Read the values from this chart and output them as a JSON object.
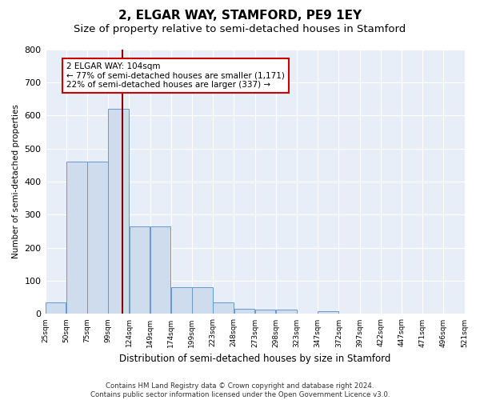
{
  "title_main": "2, ELGAR WAY, STAMFORD, PE9 1EY",
  "title_sub": "Size of property relative to semi-detached houses in Stamford",
  "xlabel": "Distribution of semi-detached houses by size in Stamford",
  "ylabel": "Number of semi-detached properties",
  "bar_color": "#cfdcee",
  "bar_edge_color": "#6699cc",
  "background_color": "#e8eef8",
  "grid_color": "white",
  "property_size": 104,
  "vline_color": "#8b0000",
  "annotation_text": "2 ELGAR WAY: 104sqm\n← 77% of semi-detached houses are smaller (1,171)\n22% of semi-detached houses are larger (337) →",
  "annotation_box_color": "white",
  "annotation_box_edge": "#cc0000",
  "bin_starts": [
    0,
    1,
    2,
    3,
    4,
    5,
    6,
    7,
    8,
    9,
    10,
    11,
    12,
    13,
    14,
    15,
    16,
    17,
    18,
    19
  ],
  "bin_labels": [
    "25sqm",
    "50sqm",
    "75sqm",
    "99sqm",
    "124sqm",
    "149sqm",
    "174sqm",
    "199sqm",
    "223sqm",
    "248sqm",
    "273sqm",
    "298sqm",
    "323sqm",
    "347sqm",
    "372sqm",
    "397sqm",
    "422sqm",
    "447sqm",
    "471sqm",
    "496sqm",
    "521sqm"
  ],
  "counts": [
    35,
    460,
    460,
    620,
    265,
    265,
    80,
    80,
    35,
    15,
    12,
    12,
    0,
    8,
    0,
    0,
    0,
    0,
    0,
    0
  ],
  "ylim": [
    0,
    800
  ],
  "yticks": [
    0,
    100,
    200,
    300,
    400,
    500,
    600,
    700,
    800
  ],
  "footer": "Contains HM Land Registry data © Crown copyright and database right 2024.\nContains public sector information licensed under the Open Government Licence v3.0.",
  "title_fontsize": 11,
  "subtitle_fontsize": 9.5,
  "num_bins": 20
}
